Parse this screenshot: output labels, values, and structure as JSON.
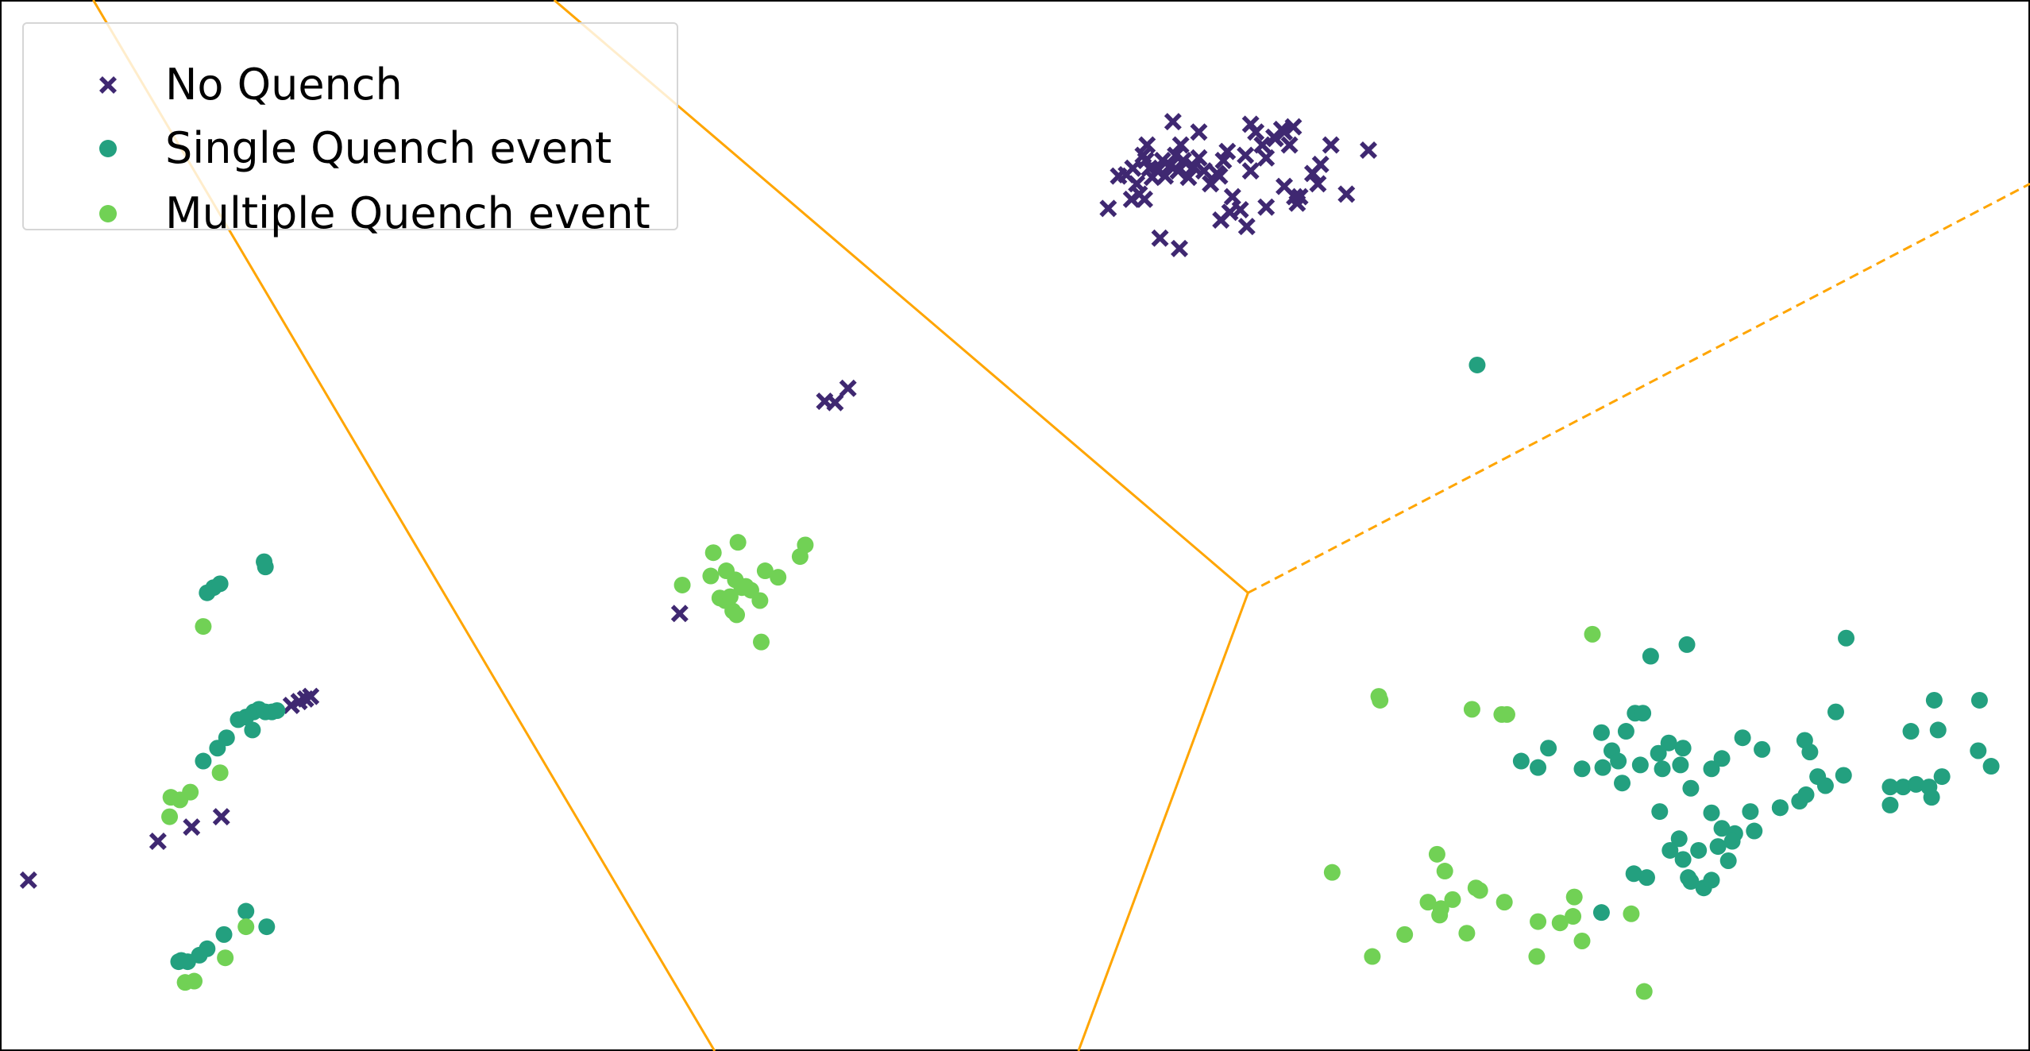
{
  "colors": {
    "no_quench": "#3f2871",
    "single": "#23a07f",
    "multiple": "#71d155",
    "boundary": "#ffa500"
  },
  "legend": {
    "no_quench": "No Quench",
    "single": "Single Quench event",
    "multiple": "Multiple Quench event",
    "placement": "upper-left"
  },
  "chart_data": {
    "type": "scatter",
    "title": "",
    "xlabel": "",
    "ylabel": "",
    "axes_visible": false,
    "grid": false,
    "xlim": [
      0,
      1568
    ],
    "ylim": [
      0,
      812
    ],
    "series": [
      {
        "name": "No Quench",
        "marker": "x",
        "points": [
          [
            856,
            651
          ],
          [
            870,
            677
          ],
          [
            875,
            682
          ],
          [
            878,
            670
          ],
          [
            883,
            692
          ],
          [
            885,
            688
          ],
          [
            888,
            682
          ],
          [
            890,
            675
          ],
          [
            894,
            680
          ],
          [
            898,
            688
          ],
          [
            900,
            676
          ],
          [
            904,
            684
          ],
          [
            908,
            692
          ],
          [
            910,
            680
          ],
          [
            914,
            688
          ],
          [
            918,
            675
          ],
          [
            922,
            683
          ],
          [
            926,
            690
          ],
          [
            930,
            680
          ],
          [
            935,
            670
          ],
          [
            940,
            678
          ],
          [
            945,
            688
          ],
          [
            948,
            695
          ],
          [
            952,
            660
          ],
          [
            958,
            650
          ],
          [
            962,
            692
          ],
          [
            966,
            680
          ],
          [
            970,
            710
          ],
          [
            975,
            700
          ],
          [
            978,
            690
          ],
          [
            985,
            705
          ],
          [
            990,
            712
          ],
          [
            996,
            700
          ],
          [
            1004,
            660
          ],
          [
            1014,
            678
          ],
          [
            1020,
            685
          ],
          [
            1028,
            700
          ],
          [
            1040,
            662
          ],
          [
            1057,
            696
          ],
          [
            874,
            658
          ],
          [
            884,
            658
          ],
          [
            896,
            628
          ],
          [
            911,
            620
          ],
          [
            943,
            642
          ],
          [
            950,
            648
          ],
          [
            963,
            637
          ],
          [
            978,
            652
          ],
          [
            992,
            668
          ],
          [
            1018,
            670
          ],
          [
            864,
            676
          ],
          [
            880,
            662
          ],
          [
            886,
            700
          ],
          [
            906,
            718
          ],
          [
            926,
            710
          ],
          [
            942,
            676
          ],
          [
            966,
            716
          ],
          [
            984,
            706
          ],
          [
            1000,
            660
          ],
          [
            1002,
            655
          ],
          [
            992,
            710
          ],
          [
            999,
            714
          ],
          [
            912,
            700
          ],
          [
            637,
            502
          ],
          [
            645,
            501
          ],
          [
            655,
            512
          ],
          [
            525,
            338
          ],
          [
            225,
            267
          ],
          [
            231,
            270
          ],
          [
            236,
            272
          ],
          [
            240,
            274
          ],
          [
            22,
            132
          ],
          [
            122,
            162
          ],
          [
            148,
            173
          ],
          [
            171,
            181
          ]
        ]
      },
      {
        "name": "Single Quench event",
        "points": [
          [
            1141,
            530
          ],
          [
            160,
            354
          ],
          [
            165,
            358
          ],
          [
            170,
            361
          ],
          [
            204,
            378
          ],
          [
            205,
            374
          ],
          [
            184,
            256
          ],
          [
            190,
            258
          ],
          [
            196,
            262
          ],
          [
            200,
            264
          ],
          [
            205,
            262
          ],
          [
            210,
            262
          ],
          [
            214,
            263
          ],
          [
            195,
            248
          ],
          [
            175,
            242
          ],
          [
            168,
            234
          ],
          [
            157,
            224
          ],
          [
            190,
            108
          ],
          [
            206,
            96
          ],
          [
            173,
            90
          ],
          [
            160,
            79
          ],
          [
            154,
            74
          ],
          [
            145,
            69
          ],
          [
            138,
            69
          ],
          [
            140,
            70
          ],
          [
            1275,
            305
          ],
          [
            1303,
            314
          ],
          [
            1426,
            319
          ],
          [
            1418,
            262
          ],
          [
            1494,
            271
          ],
          [
            1529,
            271
          ],
          [
            1476,
            247
          ],
          [
            1497,
            248
          ],
          [
            1528,
            232
          ],
          [
            1538,
            220
          ],
          [
            1175,
            224
          ],
          [
            1188,
            219
          ],
          [
            1196,
            234
          ],
          [
            1222,
            218
          ],
          [
            1238,
            219
          ],
          [
            1245,
            232
          ],
          [
            1250,
            224
          ],
          [
            1263,
            261
          ],
          [
            1269,
            261
          ],
          [
            1256,
            247
          ],
          [
            1237,
            246
          ],
          [
            1289,
            238
          ],
          [
            1300,
            234
          ],
          [
            1281,
            230
          ],
          [
            1267,
            221
          ],
          [
            1284,
            218
          ],
          [
            1298,
            221
          ],
          [
            1322,
            218
          ],
          [
            1330,
            226
          ],
          [
            1346,
            242
          ],
          [
            1361,
            233
          ],
          [
            1394,
            240
          ],
          [
            1398,
            231
          ],
          [
            1404,
            212
          ],
          [
            1410,
            205
          ],
          [
            1424,
            213
          ],
          [
            1460,
            204
          ],
          [
            1470,
            204
          ],
          [
            1480,
            206
          ],
          [
            1492,
            196
          ],
          [
            1500,
            212
          ],
          [
            1460,
            190
          ],
          [
            1490,
            204
          ],
          [
            1375,
            188
          ],
          [
            1390,
            193
          ],
          [
            1395,
            198
          ],
          [
            1375,
            188
          ],
          [
            1282,
            185
          ],
          [
            1306,
            203
          ],
          [
            1322,
            184
          ],
          [
            1330,
            172
          ],
          [
            1340,
            168
          ],
          [
            1352,
            185
          ],
          [
            1355,
            170
          ],
          [
            1297,
            164
          ],
          [
            1290,
            155
          ],
          [
            1300,
            148
          ],
          [
            1312,
            155
          ],
          [
            1327,
            158
          ],
          [
            1335,
            147
          ],
          [
            1338,
            162
          ],
          [
            1306,
            131
          ],
          [
            1316,
            126
          ],
          [
            1322,
            132
          ],
          [
            1304,
            134
          ],
          [
            1272,
            134
          ],
          [
            1262,
            137
          ],
          [
            1237,
            107
          ],
          [
            1253,
            207
          ]
        ]
      },
      {
        "name": "Multiple Quench event",
        "points": [
          [
            570,
            393
          ],
          [
            551,
            385
          ],
          [
            622,
            391
          ],
          [
            618,
            382
          ],
          [
            527,
            360
          ],
          [
            549,
            367
          ],
          [
            561,
            371
          ],
          [
            568,
            364
          ],
          [
            576,
            359
          ],
          [
            580,
            356
          ],
          [
            591,
            371
          ],
          [
            601,
            366
          ],
          [
            556,
            350
          ],
          [
            560,
            348
          ],
          [
            566,
            340
          ],
          [
            569,
            337
          ],
          [
            587,
            348
          ],
          [
            588,
            316
          ],
          [
            573,
            358
          ],
          [
            564,
            351
          ],
          [
            157,
            328
          ],
          [
            147,
            200
          ],
          [
            132,
            196
          ],
          [
            139,
            194
          ],
          [
            131,
            181
          ],
          [
            170,
            215
          ],
          [
            174,
            72
          ],
          [
            190,
            96
          ],
          [
            143,
            53
          ],
          [
            150,
            54
          ],
          [
            1230,
            322
          ],
          [
            1065,
            274
          ],
          [
            1066,
            271
          ],
          [
            1137,
            264
          ],
          [
            1160,
            260
          ],
          [
            1164,
            260
          ],
          [
            1029,
            138
          ],
          [
            1110,
            152
          ],
          [
            1116,
            139
          ],
          [
            1140,
            126
          ],
          [
            1143,
            124
          ],
          [
            1162,
            115
          ],
          [
            1103,
            115
          ],
          [
            1112,
            105
          ],
          [
            1113,
            110
          ],
          [
            1122,
            117
          ],
          [
            1085,
            90
          ],
          [
            1060,
            73
          ],
          [
            1133,
            91
          ],
          [
            1188,
            100
          ],
          [
            1205,
            99
          ],
          [
            1215,
            104
          ],
          [
            1216,
            119
          ],
          [
            1222,
            85
          ],
          [
            1187,
            73
          ],
          [
            1260,
            106
          ],
          [
            1270,
            46
          ]
        ]
      }
    ],
    "boundaries": [
      {
        "style": "solid",
        "from": [
          72,
          812
        ],
        "to": [
          552,
          0
        ]
      },
      {
        "style": "solid",
        "from": [
          428,
          812
        ],
        "to": [
          964,
          354
        ]
      },
      {
        "style": "solid",
        "from": [
          964,
          354
        ],
        "to": [
          833,
          0
        ]
      },
      {
        "style": "dashed",
        "from": [
          964,
          354
        ],
        "to": [
          1568,
          670
        ]
      }
    ]
  }
}
